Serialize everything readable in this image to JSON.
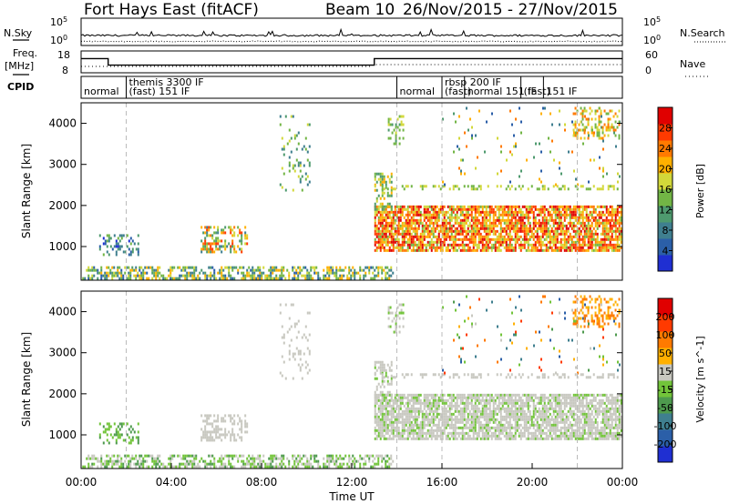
{
  "header": {
    "title": "Fort Hays East (fitACF)",
    "beam": "Beam 10",
    "dates": "26/Nov/2015 - 27/Nov/2015"
  },
  "strip_labels": {
    "nsky": "N.Sky",
    "nsky_top": "10^5",
    "nsky_bottom": "10^0",
    "freq": "Freq.",
    "freq_unit": "[MHz]",
    "freq_top": "18",
    "freq_bottom": "8",
    "nsearch": "N.Search",
    "nsearch_top": "10^5",
    "nsearch_bottom": "10^0",
    "nave": "Nave",
    "nave_top": "60",
    "nave_bottom": "0",
    "cpid": "CPID"
  },
  "cpid_segments": [
    {
      "label": "normal",
      "start_h": 0.0,
      "end_h": 2.0
    },
    {
      "label": "themis 3300 IF",
      "start_h": 2.0,
      "end_h": 14.0
    },
    {
      "label": "(fast) 151 IF",
      "start_h": 2.0,
      "end_h": 14.0
    },
    {
      "label": "normal",
      "start_h": 14.0,
      "end_h": 16.0
    },
    {
      "label": "rbsp 200 IF",
      "start_h": 16.0,
      "end_h": 17.0
    },
    {
      "label": "(fast)",
      "start_h": 16.0,
      "end_h": 17.0
    },
    {
      "label": "normal 151 IF",
      "start_h": 17.0,
      "end_h": 19.5
    },
    {
      "label": "(fast)",
      "start_h": 19.5,
      "end_h": 20.5
    },
    {
      "label": "151 IF",
      "start_h": 20.5,
      "end_h": 22.0
    }
  ],
  "chart_data": [
    {
      "type": "heatmap",
      "name": "power",
      "xlabel": "",
      "ylabel": "Slant Range [km]",
      "xlim": [
        0,
        24
      ],
      "ylim": [
        180,
        4500
      ],
      "yticks": [
        1000,
        2000,
        3000,
        4000
      ],
      "colorbar": {
        "label": "Power [dB]",
        "ticks": [
          "4",
          "8",
          "12",
          "16",
          "20",
          "24",
          "28"
        ],
        "colors": [
          "#1f2fd2",
          "#2b5fa8",
          "#3f7f8f",
          "#4e9a6e",
          "#72b545",
          "#d2d83a",
          "#ffb000",
          "#ff7a00",
          "#ff3a00",
          "#e00000"
        ]
      }
    },
    {
      "type": "heatmap",
      "name": "velocity",
      "xlabel": "Time UT",
      "ylabel": "Slant Range [km]",
      "xlim": [
        0,
        24
      ],
      "ylim": [
        180,
        4500
      ],
      "yticks": [
        1000,
        2000,
        3000,
        4000
      ],
      "xticks": [
        "00:00",
        "04:00",
        "08:00",
        "12:00",
        "16:00",
        "20:00",
        "00:00"
      ],
      "colorbar": {
        "label": "Velocity [m s^-1]",
        "ticks": [
          "200",
          "100",
          "50",
          "15",
          "-15",
          "-50",
          "-100",
          "-200"
        ],
        "colors": [
          "#1f2fd2",
          "#2b5fa8",
          "#3f7f8f",
          "#4e9a4e",
          "#72c43a",
          "#c8c8c0",
          "#ffb000",
          "#ff7a00",
          "#ff3a00",
          "#e00000"
        ]
      }
    }
  ],
  "scatter_regions": [
    {
      "t0": 0.05,
      "t1": 13.9,
      "r0": 180,
      "r1": 520,
      "density": 0.55,
      "pow": [
        0.15,
        0.7
      ],
      "vel": [
        0.35,
        0.6
      ]
    },
    {
      "t0": 0.8,
      "t1": 2.6,
      "r0": 800,
      "r1": 1300,
      "density": 0.35,
      "pow": [
        0.05,
        0.45
      ],
      "vel": [
        0.3,
        0.5
      ]
    },
    {
      "t0": 5.3,
      "t1": 7.4,
      "r0": 850,
      "r1": 1500,
      "density": 0.45,
      "pow": [
        0.25,
        0.9
      ],
      "vel": [
        0.5,
        0.6
      ]
    },
    {
      "t0": 8.8,
      "t1": 10.2,
      "r0": 2300,
      "r1": 4200,
      "density": 0.12,
      "pow": [
        0.2,
        0.6
      ],
      "vel": [
        0.5,
        0.6
      ]
    },
    {
      "t0": 13.0,
      "t1": 23.95,
      "r0": 900,
      "r1": 2000,
      "density": 0.8,
      "pow": [
        0.45,
        1.0
      ],
      "vel": [
        0.48,
        0.58
      ]
    },
    {
      "t0": 13.0,
      "t1": 13.8,
      "r0": 1900,
      "r1": 2800,
      "density": 0.45,
      "pow": [
        0.3,
        0.7
      ],
      "vel": [
        0.48,
        0.58
      ]
    },
    {
      "t0": 13.6,
      "t1": 14.3,
      "r0": 3500,
      "r1": 4200,
      "density": 0.35,
      "pow": [
        0.35,
        0.6
      ],
      "vel": [
        0.45,
        0.6
      ]
    },
    {
      "t0": 13.0,
      "t1": 23.9,
      "r0": 2350,
      "r1": 2500,
      "density": 0.3,
      "pow": [
        0.4,
        0.6
      ],
      "vel": [
        0.5,
        0.58
      ]
    },
    {
      "t0": 16.0,
      "t1": 23.9,
      "r0": 2500,
      "r1": 4400,
      "density": 0.03,
      "pow": [
        0.1,
        0.8
      ],
      "vel": [
        0.1,
        0.9
      ]
    },
    {
      "t0": 21.8,
      "t1": 23.9,
      "r0": 3600,
      "r1": 4400,
      "density": 0.3,
      "pow": [
        0.4,
        0.8
      ],
      "vel": [
        0.6,
        0.8
      ]
    }
  ]
}
